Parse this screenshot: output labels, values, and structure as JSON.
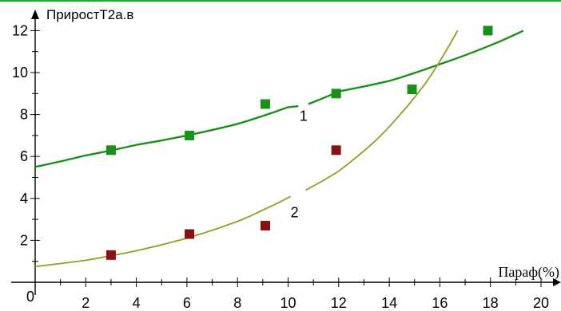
{
  "chart_data": {
    "type": "scatter",
    "ylabel": "ПриростТ2а.в",
    "xlabel": "Параф(%)",
    "xlim": [
      0,
      20
    ],
    "ylim": [
      0,
      12
    ],
    "x_ticks": [
      0,
      2,
      4,
      6,
      8,
      10,
      12,
      14,
      16,
      18,
      20
    ],
    "y_ticks": [
      2,
      4,
      6,
      8,
      10,
      12
    ],
    "grid": false,
    "colors": {
      "series_1": "#1a8f1a",
      "series_2_points": "#8b1010",
      "series_2_curve": "#9a9a22",
      "top_line": "#22aa22"
    },
    "series": [
      {
        "name": "1",
        "points": [
          [
            3,
            6.3
          ],
          [
            6.1,
            7.0
          ],
          [
            9.1,
            8.5
          ],
          [
            11.9,
            9.0
          ],
          [
            14.9,
            9.2
          ],
          [
            17.9,
            12.0
          ]
        ],
        "fit_curve": [
          [
            0,
            5.5
          ],
          [
            2,
            6.05
          ],
          [
            4,
            6.55
          ],
          [
            6,
            7.0
          ],
          [
            8,
            7.55
          ],
          [
            10,
            8.35
          ],
          [
            10.4,
            8.4
          ]
        ],
        "fit_curve_b": [
          [
            10.8,
            8.5
          ],
          [
            12,
            9.1
          ],
          [
            14,
            9.6
          ],
          [
            16,
            10.4
          ],
          [
            18,
            11.3
          ],
          [
            19.3,
            12.0
          ]
        ],
        "label": "1"
      },
      {
        "name": "2",
        "points": [
          [
            3,
            1.3
          ],
          [
            6.1,
            2.3
          ],
          [
            9.1,
            2.7
          ],
          [
            11.9,
            6.3
          ]
        ],
        "fit_curve": [
          [
            0,
            0.75
          ],
          [
            2,
            1.05
          ],
          [
            4,
            1.5
          ],
          [
            6,
            2.1
          ],
          [
            8,
            2.9
          ],
          [
            9.1,
            3.5
          ],
          [
            10.1,
            4.1
          ]
        ],
        "fit_curve_b": [
          [
            10.7,
            4.4
          ],
          [
            12,
            5.3
          ],
          [
            13.5,
            6.8
          ],
          [
            14.5,
            8.1
          ],
          [
            15.5,
            9.6
          ],
          [
            16.7,
            12.0
          ]
        ],
        "label": "2"
      }
    ]
  }
}
